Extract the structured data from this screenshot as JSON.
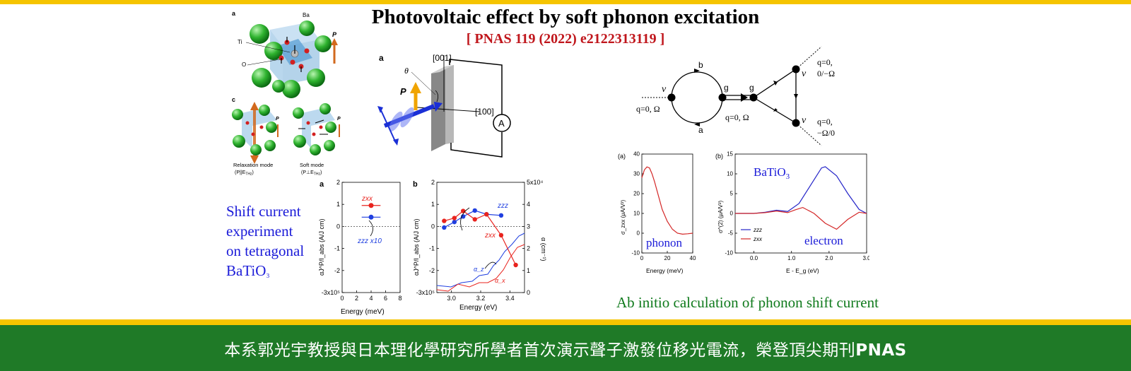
{
  "header": {
    "title": "Photovoltaic effect by soft phonon excitation",
    "reference": "[ PNAS 119 (2022) e2122313119 ]"
  },
  "crystal_figure": {
    "panel_a": "a",
    "panel_c": "c",
    "atom_ba": "Ba",
    "atom_ti": "Ti",
    "atom_o": "O",
    "polarization": "P",
    "relaxation_label": "Relaxation mode",
    "relaxation_cond": "(P||E",
    "relaxation_sub": "THz",
    "relaxation_close": ")",
    "soft_label": "Soft mode",
    "soft_cond": "(P⊥E",
    "soft_sub": "THz",
    "soft_close": ")"
  },
  "setup_figure": {
    "panel": "a",
    "dir_001": "[001]",
    "dir_100": "[100]",
    "theta": "θ",
    "polarization": "P",
    "ammeter": "A"
  },
  "caption_left": {
    "line1": "Shift current",
    "line2": "experiment",
    "line3": "on tetragonal",
    "line4": "BaTiO",
    "line4_sub": "₃"
  },
  "diagram": {
    "label_b": "b",
    "label_a": "a",
    "label_g1": "g",
    "label_g2": "g",
    "v_left": "v",
    "v_top": "v",
    "v_bottom": "v",
    "q_left": "q=0, Ω",
    "q_mid": "q=0, Ω",
    "q_top_1": "q=0,",
    "q_top_2": "0/−Ω",
    "q_bottom_1": "q=0,",
    "q_bottom_2": "−Ω/0"
  },
  "chart_data": [
    {
      "type": "scatter",
      "panel": "a",
      "xlabel": "Energy (meV)",
      "ylabel": "αJ^P/I_abs (A/J cm)",
      "xlim": [
        0,
        8
      ],
      "ylim": [
        -3,
        2
      ],
      "x_ticks": [
        "0",
        "2",
        "4",
        "6",
        "8"
      ],
      "y_ticks": [
        "2",
        "1",
        "0",
        "-1",
        "-2",
        "-3x10⁵"
      ],
      "series": [
        {
          "name": "zxx",
          "x": [
            4
          ],
          "y": [
            0.95
          ],
          "xerr": [
            1.3
          ],
          "color": "#e8231e"
        },
        {
          "name": "zzz x10",
          "x": [
            4
          ],
          "y": [
            0.42
          ],
          "xerr": [
            1.3
          ],
          "color": "#1f3fe0"
        }
      ]
    },
    {
      "type": "line",
      "panel": "b",
      "xlabel": "Energy (eV)",
      "ylabel": "αJ^P/I_abs (A/J cm)",
      "ylabel_right": "α (cm⁻¹)",
      "xlim": [
        2.9,
        3.5
      ],
      "ylim": [
        -3,
        2
      ],
      "ylim_right": [
        0,
        5
      ],
      "x_ticks": [
        "3.0",
        "3.2",
        "3.4"
      ],
      "y_ticks": [
        "2",
        "1",
        "0",
        "-1",
        "-2",
        "-3x10⁵"
      ],
      "y_ticks_right": [
        "5x10⁴",
        "4",
        "3",
        "2",
        "1",
        "0"
      ],
      "series": [
        {
          "name": "zzz",
          "x": [
            2.95,
            3.02,
            3.08,
            3.16,
            3.24,
            3.34
          ],
          "y": [
            -0.05,
            0.2,
            0.45,
            0.72,
            0.55,
            0.5
          ],
          "color": "#1f3fe0"
        },
        {
          "name": "zxx",
          "x": [
            2.95,
            3.02,
            3.08,
            3.16,
            3.24,
            3.34,
            3.44
          ],
          "y": [
            0.25,
            0.38,
            0.7,
            0.32,
            0.55,
            -0.4,
            -1.75
          ],
          "color": "#e8231e"
        }
      ],
      "absorption": [
        {
          "name": "α_z",
          "color": "#1f3fe0"
        },
        {
          "name": "α_x",
          "color": "#e8231e"
        }
      ]
    },
    {
      "type": "line",
      "panel": "(a)",
      "xlabel": "Energy (meV)",
      "ylabel": "σ_zxx (μA/V²)",
      "xlim": [
        0,
        40
      ],
      "ylim": [
        -10,
        40
      ],
      "x_ticks": [
        "0",
        "20",
        "40"
      ],
      "y_ticks": [
        "40",
        "30",
        "20",
        "10",
        "0",
        "-10"
      ],
      "annotation": "phonon",
      "series": [
        {
          "name": "zxx",
          "x": [
            0,
            2,
            4,
            6,
            8,
            10,
            13,
            16,
            20,
            24,
            28,
            32,
            36,
            40
          ],
          "y": [
            28,
            32,
            33.5,
            33,
            30,
            26,
            19,
            12,
            6,
            2,
            0,
            -0.5,
            -0.3,
            0
          ],
          "color": "#d42828"
        }
      ]
    },
    {
      "type": "line",
      "panel": "(b)",
      "xlabel": "E - E_g (eV)",
      "ylabel": "σ^(2) (μA/V²)",
      "xlim": [
        -0.5,
        3.0
      ],
      "ylim": [
        -10,
        15
      ],
      "x_ticks": [
        "0.0",
        "1.0",
        "2.0",
        "3.0"
      ],
      "y_ticks": [
        "15",
        "10",
        "5",
        "0",
        "-5",
        "-10"
      ],
      "material": "BaTiO",
      "material_sub": "3",
      "annotation": "electron",
      "series": [
        {
          "name": "zzz",
          "x": [
            -0.5,
            0,
            0.3,
            0.6,
            0.9,
            1.2,
            1.5,
            1.8,
            1.9,
            2.2,
            2.5,
            2.8,
            3.0
          ],
          "y": [
            0,
            0,
            0.3,
            0.8,
            0.5,
            2.5,
            7,
            11.5,
            11.8,
            9.5,
            5,
            1,
            0
          ],
          "color": "#2424c8"
        },
        {
          "name": "zxx",
          "x": [
            -0.5,
            0,
            0.3,
            0.6,
            0.9,
            1.1,
            1.3,
            1.6,
            1.9,
            2.2,
            2.5,
            2.8,
            3.0
          ],
          "y": [
            0,
            0,
            0.2,
            0.6,
            0.2,
            0.9,
            1.5,
            0,
            -2.5,
            -4,
            -1.5,
            0.3,
            0
          ],
          "color": "#d42828"
        }
      ]
    }
  ],
  "caption_right": "Ab initio calculation of phonon shift current",
  "footer": {
    "text": "本系郭光宇教授與日本理化學研究所學者首次演示聲子激發位移光電流，榮登頂尖期刊",
    "bold": "PNAS"
  }
}
